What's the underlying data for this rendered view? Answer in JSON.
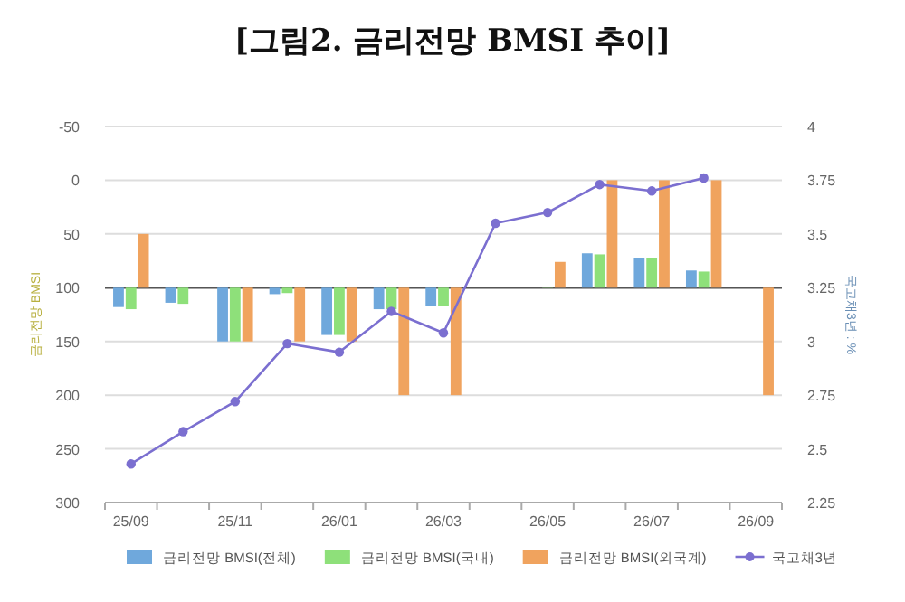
{
  "chart_data": {
    "type": "bar",
    "title": "[그림2.  금리전망 BMSI 추이]",
    "ylabel": "금리전망 BMSI",
    "y2label": "국고채3년 : %",
    "categories": [
      "25/09",
      null,
      "25/11",
      null,
      "26/01",
      null,
      "26/03",
      null,
      "26/05",
      null,
      "26/07",
      null,
      "26/09"
    ],
    "series": [
      {
        "name": "금리전망 BMSI(전체)",
        "color": "#6fa8dc",
        "base": [
          100,
          100,
          100,
          100,
          100,
          100,
          100,
          null,
          null,
          100,
          100,
          100,
          null
        ],
        "values": [
          18,
          14,
          50,
          6,
          44,
          20,
          17,
          null,
          null,
          -32,
          -28,
          -16,
          null
        ]
      },
      {
        "name": "금리전망 BMSI(국내)",
        "color": "#8ee07a",
        "base": [
          100,
          100,
          100,
          100,
          100,
          100,
          100,
          null,
          100,
          100,
          100,
          100,
          null
        ],
        "values": [
          20,
          15,
          50,
          5,
          44,
          20,
          17,
          null,
          -1,
          -31,
          -28,
          -15,
          null
        ]
      },
      {
        "name": "금리전망 BMSI(외국계)",
        "color": "#f0a35e",
        "base": [
          100,
          null,
          100,
          100,
          100,
          100,
          100,
          null,
          100,
          100,
          100,
          100,
          100
        ],
        "values": [
          -50,
          null,
          50,
          50,
          50,
          100,
          100,
          null,
          -24,
          -100,
          -100,
          -100,
          100
        ]
      },
      {
        "name": "국고채3년",
        "type": "line",
        "axis": "y2",
        "marker": "circle",
        "color": "#7b6fd0",
        "values": [
          2.43,
          2.58,
          2.72,
          2.99,
          2.95,
          3.14,
          3.04,
          3.55,
          3.6,
          3.73,
          3.7,
          3.76,
          null
        ]
      }
    ],
    "ylim": [
      300,
      -50
    ],
    "yticks": [
      -50,
      0,
      50,
      100,
      150,
      200,
      250,
      300
    ],
    "y2lim": [
      2.25,
      4
    ],
    "y2ticks": [
      2.25,
      2.5,
      2.75,
      3,
      3.25,
      3.5,
      3.75,
      4
    ],
    "ref_lines": [
      {
        "axis": "y",
        "value": 100,
        "color": "#555555"
      }
    ],
    "grid": "y",
    "legend": "bottom"
  }
}
